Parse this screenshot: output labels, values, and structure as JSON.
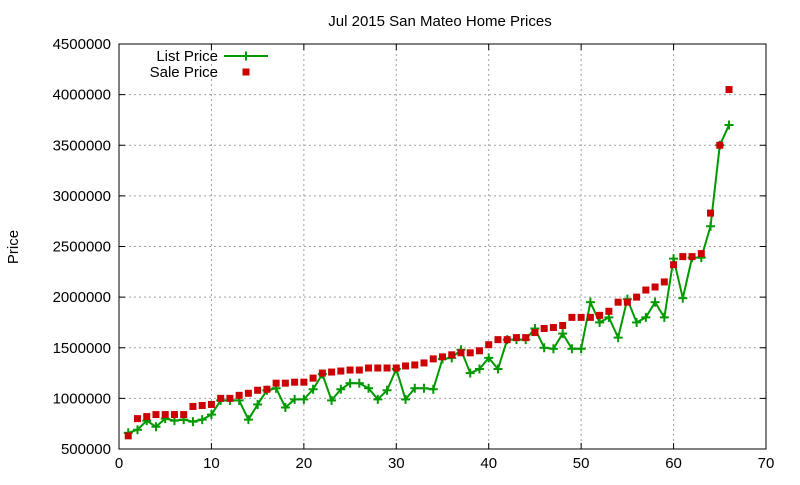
{
  "chart_data": {
    "type": "line",
    "title": "Jul 2015 San Mateo Home Prices",
    "xlabel": "",
    "ylabel": "Price",
    "xlim": [
      0,
      70
    ],
    "ylim": [
      500000,
      4500000
    ],
    "x_ticks": [
      0,
      10,
      20,
      30,
      40,
      50,
      60,
      70
    ],
    "y_ticks": [
      500000,
      1000000,
      1500000,
      2000000,
      2500000,
      3000000,
      3500000,
      4000000,
      4500000
    ],
    "grid": true,
    "legend_position": "top-left",
    "series": [
      {
        "name": "List Price",
        "style": "linespoints",
        "marker": "plus",
        "color": "#009900",
        "x": [
          1,
          2,
          3,
          4,
          5,
          6,
          7,
          8,
          9,
          10,
          11,
          12,
          13,
          14,
          15,
          16,
          17,
          18,
          19,
          20,
          21,
          22,
          23,
          24,
          25,
          26,
          27,
          28,
          29,
          30,
          31,
          32,
          33,
          34,
          35,
          36,
          37,
          38,
          39,
          40,
          41,
          42,
          43,
          44,
          45,
          46,
          47,
          48,
          49,
          50,
          51,
          52,
          53,
          54,
          55,
          56,
          57,
          58,
          59,
          60,
          61,
          62,
          63,
          64,
          65,
          66
        ],
        "values": [
          660000,
          690000,
          780000,
          720000,
          800000,
          780000,
          790000,
          770000,
          790000,
          840000,
          980000,
          980000,
          980000,
          790000,
          940000,
          1080000,
          1100000,
          910000,
          990000,
          990000,
          1090000,
          1240000,
          980000,
          1090000,
          1150000,
          1150000,
          1100000,
          990000,
          1080000,
          1290000,
          990000,
          1100000,
          1100000,
          1090000,
          1390000,
          1400000,
          1480000,
          1250000,
          1290000,
          1400000,
          1290000,
          1580000,
          1580000,
          1580000,
          1690000,
          1500000,
          1490000,
          1640000,
          1490000,
          1490000,
          1950000,
          1750000,
          1800000,
          1600000,
          1980000,
          1750000,
          1800000,
          1950000,
          1800000,
          2380000,
          1990000,
          2390000,
          2390000,
          2700000,
          3500000,
          3700000
        ]
      },
      {
        "name": "Sale Price",
        "style": "points",
        "marker": "square",
        "color": "#cc0000",
        "x": [
          1,
          2,
          3,
          4,
          5,
          6,
          7,
          8,
          9,
          10,
          11,
          12,
          13,
          14,
          15,
          16,
          17,
          18,
          19,
          20,
          21,
          22,
          23,
          24,
          25,
          26,
          27,
          28,
          29,
          30,
          31,
          32,
          33,
          34,
          35,
          36,
          37,
          38,
          39,
          40,
          41,
          42,
          43,
          44,
          45,
          46,
          47,
          48,
          49,
          50,
          51,
          52,
          53,
          54,
          55,
          56,
          57,
          58,
          59,
          60,
          61,
          62,
          63,
          64,
          65,
          66
        ],
        "values": [
          630000,
          800000,
          820000,
          840000,
          840000,
          840000,
          840000,
          920000,
          930000,
          940000,
          1000000,
          1000000,
          1030000,
          1050000,
          1080000,
          1090000,
          1150000,
          1150000,
          1160000,
          1160000,
          1200000,
          1250000,
          1260000,
          1270000,
          1280000,
          1280000,
          1300000,
          1300000,
          1300000,
          1300000,
          1320000,
          1330000,
          1350000,
          1390000,
          1410000,
          1430000,
          1450000,
          1450000,
          1470000,
          1530000,
          1580000,
          1580000,
          1600000,
          1600000,
          1650000,
          1690000,
          1700000,
          1720000,
          1800000,
          1800000,
          1800000,
          1820000,
          1860000,
          1950000,
          1950000,
          2000000,
          2070000,
          2100000,
          2150000,
          2320000,
          2400000,
          2400000,
          2430000,
          2830000,
          3500000,
          4050000
        ]
      }
    ]
  }
}
